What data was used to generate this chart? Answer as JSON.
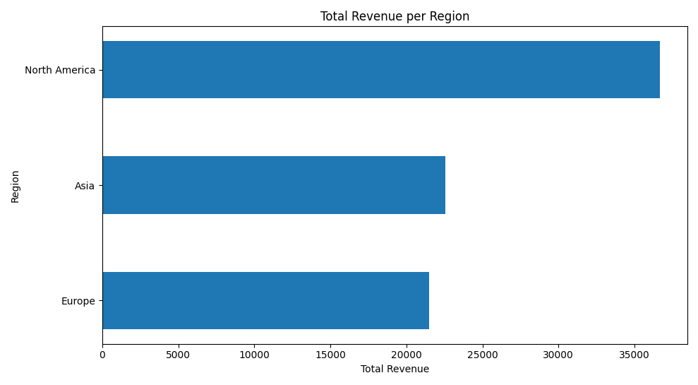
{
  "regions": [
    "Europe",
    "Asia",
    "North America"
  ],
  "values": [
    21474,
    22555,
    36648
  ],
  "bar_color": "#1f77b4",
  "title": "Total Revenue per Region",
  "xlabel": "Total Revenue",
  "ylabel": "Region",
  "bar_height": 0.5,
  "figsize": [
    9.89,
    5.45
  ],
  "dpi": 100
}
